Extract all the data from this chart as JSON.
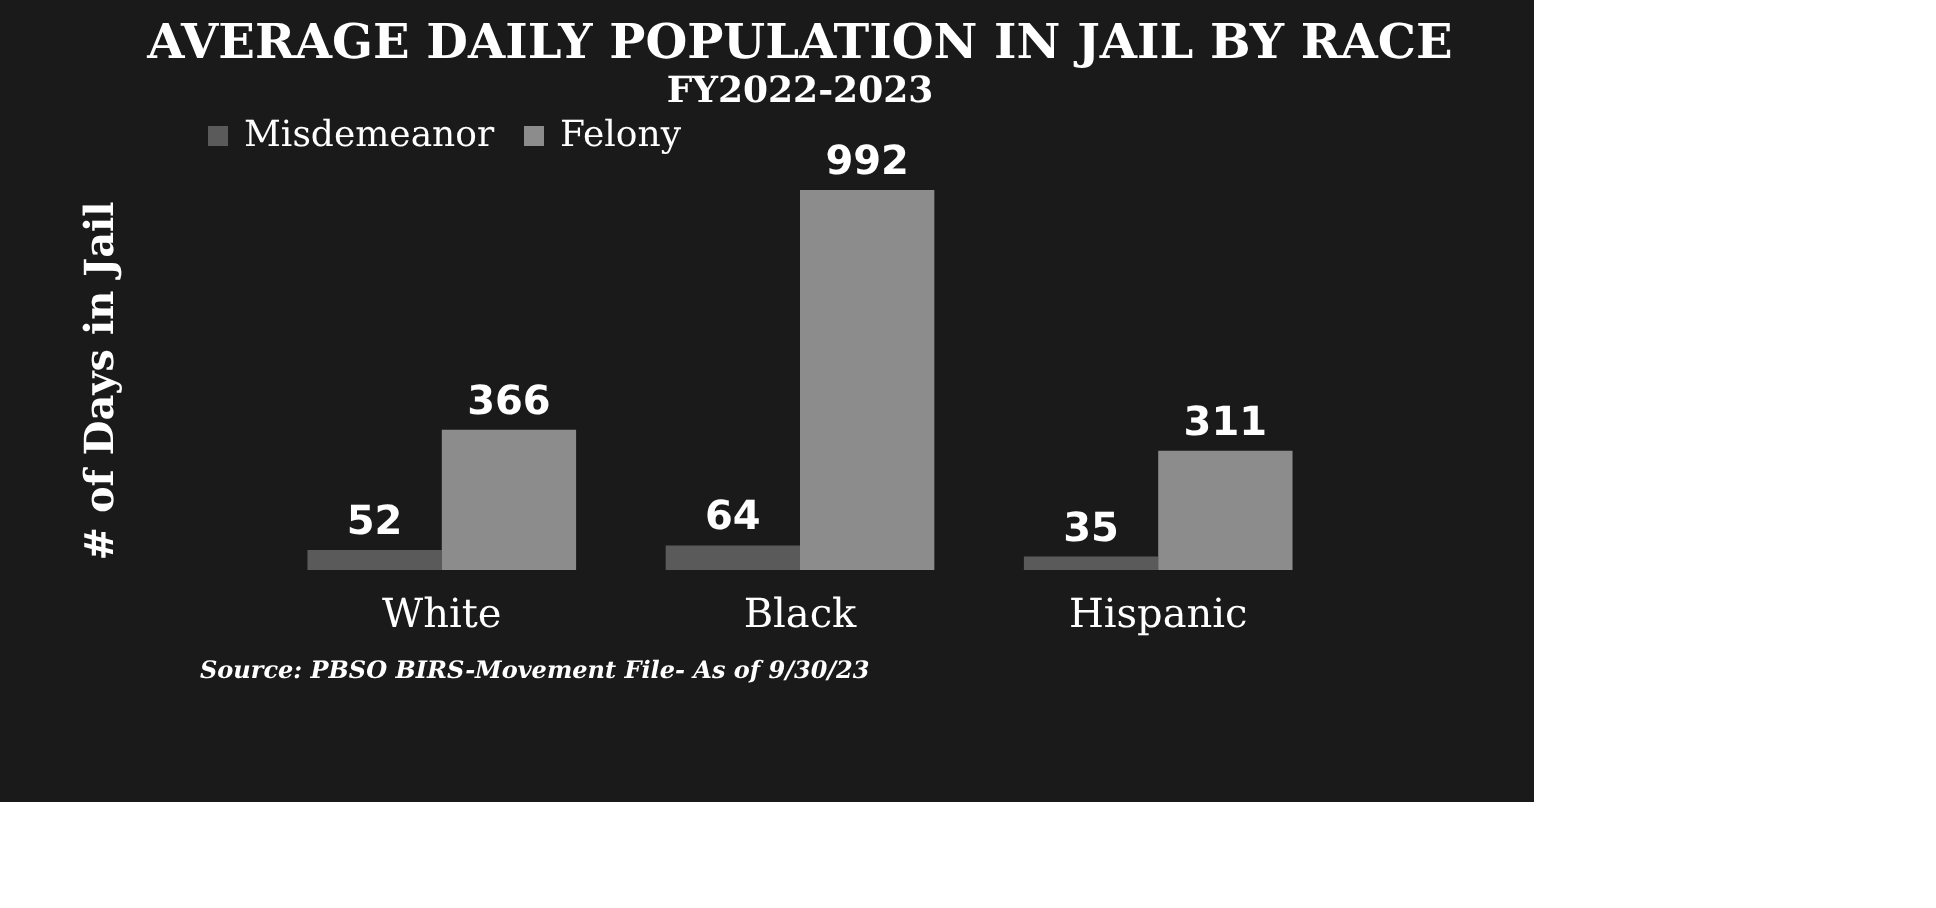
{
  "chart_data": {
    "type": "bar",
    "title": "AVERAGE DAILY POPULATION IN JAIL BY RACE",
    "subtitle": "FY2022-2023",
    "ylabel": "# of Days in Jail",
    "categories": [
      "White",
      "Black",
      "Hispanic"
    ],
    "series": [
      {
        "name": "Misdemeanor",
        "color": "#5a5a5a",
        "values": [
          52,
          64,
          35
        ]
      },
      {
        "name": "Felony",
        "color": "#8c8c8c",
        "values": [
          366,
          992,
          311
        ]
      }
    ],
    "data_labels": true,
    "legend": "top",
    "grid": false,
    "tick_labels": "x",
    "annotations": [
      "Source: PBSO BIRS-Movement File- As of 9/30/23"
    ]
  }
}
